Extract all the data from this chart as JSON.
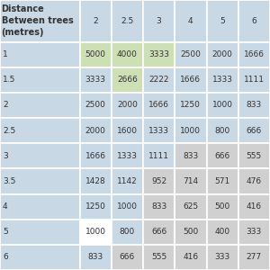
{
  "header_label": "Distance\nBetween trees\n(metres)",
  "col_headers": [
    "2",
    "2.5",
    "3",
    "4",
    "5",
    "6"
  ],
  "row_headers": [
    "1",
    "1.5",
    "2",
    "2.5",
    "3",
    "3.5",
    "4",
    "5",
    "6"
  ],
  "table_data": [
    [
      5000,
      4000,
      3333,
      2500,
      2000,
      1666
    ],
    [
      3333,
      2666,
      2222,
      1666,
      1333,
      1111
    ],
    [
      2500,
      2000,
      1666,
      1250,
      1000,
      833
    ],
    [
      2000,
      1600,
      1333,
      1000,
      800,
      666
    ],
    [
      1666,
      1333,
      1111,
      833,
      666,
      555
    ],
    [
      1428,
      1142,
      952,
      714,
      571,
      476
    ],
    [
      1250,
      1000,
      833,
      625,
      500,
      416
    ],
    [
      1000,
      800,
      666,
      500,
      400,
      333
    ],
    [
      833,
      666,
      555,
      416,
      333,
      277
    ]
  ],
  "cell_colors": [
    [
      "#cde0b4",
      "#cde0b4",
      "#cde0b4",
      "#c8d8e4",
      "#c8d8e4",
      "#c8d8e4"
    ],
    [
      "#c8d8e4",
      "#cde0b4",
      "#c8d8e4",
      "#c8d8e4",
      "#c8d8e4",
      "#c8d8e4"
    ],
    [
      "#c8d8e4",
      "#c8d8e4",
      "#c8d8e4",
      "#c8d8e4",
      "#c8d8e4",
      "#c8d8e4"
    ],
    [
      "#c8d8e4",
      "#c8d8e4",
      "#c8d8e4",
      "#c8d8e4",
      "#c8d8e4",
      "#c8d8e4"
    ],
    [
      "#c8d8e4",
      "#c8d8e4",
      "#c8d8e4",
      "#d0d0d0",
      "#d0d0d0",
      "#d0d0d0"
    ],
    [
      "#c8d8e4",
      "#c8d8e4",
      "#d0d0d0",
      "#d0d0d0",
      "#d0d0d0",
      "#d0d0d0"
    ],
    [
      "#c8d8e4",
      "#c8d8e4",
      "#d0d0d0",
      "#d0d0d0",
      "#d0d0d0",
      "#d0d0d0"
    ],
    [
      "#ffffff",
      "#c8d8e4",
      "#d0d0d0",
      "#d0d0d0",
      "#d0d0d0",
      "#d0d0d0"
    ],
    [
      "#c8d8e4",
      "#d0d0d0",
      "#d0d0d0",
      "#d0d0d0",
      "#d0d0d0",
      "#d0d0d0"
    ]
  ],
  "header_bg": "#c8d8e4",
  "col_header_bg": "#c8d8e4",
  "row_header_bg": "#c8d8e4",
  "border_color": "#ffffff",
  "text_color": "#333333",
  "font_size": 6.5,
  "header_font_size": 7.0
}
